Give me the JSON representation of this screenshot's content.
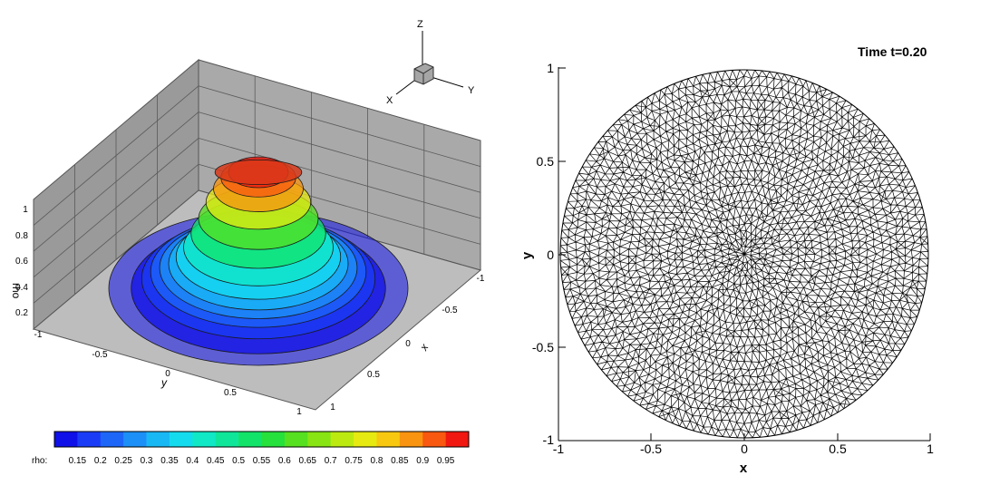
{
  "surface_plot": {
    "z_label": "rho",
    "x_label": "x",
    "y_label": "y",
    "z_ticks": [
      "1",
      "0.8",
      "0.6",
      "0.4",
      "0.2"
    ],
    "y_ticks": [
      "-1",
      "-0.5",
      "0",
      "0.5",
      "1"
    ],
    "x_ticks": [
      "-1",
      "-0.5",
      "0",
      "0.5",
      "1"
    ],
    "axis_triad": {
      "z": "Z",
      "x": "X",
      "y": "Y"
    }
  },
  "colorbar": {
    "label": "rho:",
    "ticks": [
      "0.15",
      "0.2",
      "0.25",
      "0.3",
      "0.35",
      "0.4",
      "0.45",
      "0.5",
      "0.55",
      "0.6",
      "0.65",
      "0.7",
      "0.75",
      "0.8",
      "0.85",
      "0.9",
      "0.95"
    ],
    "colors": [
      "#1010e8",
      "#1a3cf6",
      "#1e66f8",
      "#1c90f6",
      "#18b8f4",
      "#14dcee",
      "#10e8c6",
      "#10e69a",
      "#12e46a",
      "#26e03c",
      "#56e020",
      "#88e412",
      "#bcea10",
      "#e6ea10",
      "#f8c810",
      "#f89410",
      "#f85810",
      "#f01810"
    ]
  },
  "mesh_plot": {
    "title": "Time t=0.20",
    "xlabel": "x",
    "ylabel": "y",
    "x_ticks": [
      "-1",
      "-0.5",
      "0",
      "0.5",
      "1"
    ],
    "y_ticks": [
      "1",
      "0.5",
      "0",
      "-0.5",
      "-1"
    ]
  },
  "chart_data": [
    {
      "type": "surface",
      "title": "",
      "xlabel": "x",
      "ylabel": "y",
      "zlabel": "rho",
      "xlim": [
        -1,
        1
      ],
      "ylim": [
        -1,
        1
      ],
      "zlim": [
        0.1,
        1
      ],
      "profile": {
        "r": [
          0.0,
          0.2,
          0.25,
          0.3,
          0.35,
          0.4,
          0.45,
          0.5,
          0.55,
          0.6,
          0.66,
          0.72,
          0.78,
          0.85,
          1.0
        ],
        "rho": [
          1.0,
          1.0,
          0.96,
          0.88,
          0.78,
          0.66,
          0.55,
          0.45,
          0.38,
          0.33,
          0.3,
          0.27,
          0.22,
          0.15,
          0.15
        ]
      },
      "colorbar": {
        "min": 0.15,
        "max": 0.95,
        "step": 0.05
      }
    },
    {
      "type": "mesh",
      "title": "Time t=0.20",
      "xlabel": "x",
      "ylabel": "y",
      "xlim": [
        -1,
        1
      ],
      "ylim": [
        -1,
        1
      ],
      "domain": "unit disk",
      "grid": false
    }
  ]
}
